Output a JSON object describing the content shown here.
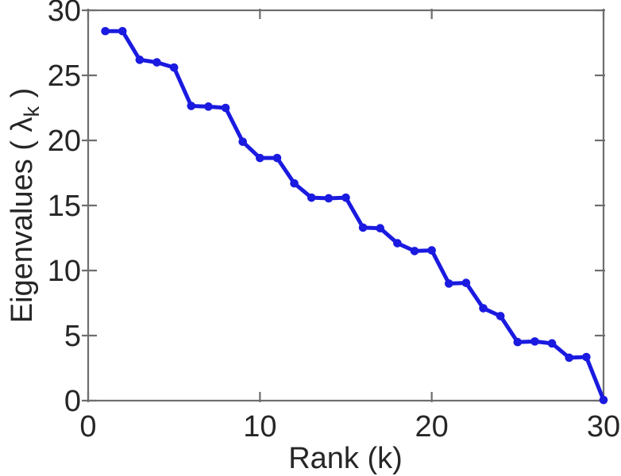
{
  "figure": {
    "background_color": "#ffffff"
  },
  "chart_data": {
    "type": "line",
    "title": "",
    "xlabel": "Rank (k)",
    "ylabel": "Eigenvalues ( λk )",
    "ylabel_parts": {
      "prefix": "Eigenvalues ( ",
      "symbol": "λ",
      "subscript": "k",
      "suffix": " )"
    },
    "x": [
      1,
      2,
      3,
      4,
      5,
      6,
      7,
      8,
      9,
      10,
      11,
      12,
      13,
      14,
      15,
      16,
      17,
      18,
      19,
      20,
      21,
      22,
      23,
      24,
      25,
      26,
      27,
      28,
      29,
      30
    ],
    "values": [
      28.4,
      28.4,
      26.2,
      26.0,
      25.6,
      22.65,
      22.6,
      22.5,
      19.9,
      18.65,
      18.65,
      16.7,
      15.6,
      15.55,
      15.6,
      13.3,
      13.25,
      12.1,
      11.5,
      11.55,
      9.0,
      9.05,
      7.1,
      6.5,
      4.5,
      4.55,
      4.4,
      3.3,
      3.35,
      0.05
    ],
    "series_name": "eigenvalues",
    "xlim": [
      0,
      30
    ],
    "ylim": [
      0,
      30
    ],
    "xticks": [
      0,
      10,
      20,
      30
    ],
    "yticks": [
      0,
      5,
      10,
      15,
      20,
      25,
      30
    ],
    "grid": false,
    "legend": "none",
    "box": true,
    "marker": "filled-circle",
    "line_color": "#1a1ae0",
    "axis_color": "#6e6e6e",
    "text_color": "#262626"
  }
}
